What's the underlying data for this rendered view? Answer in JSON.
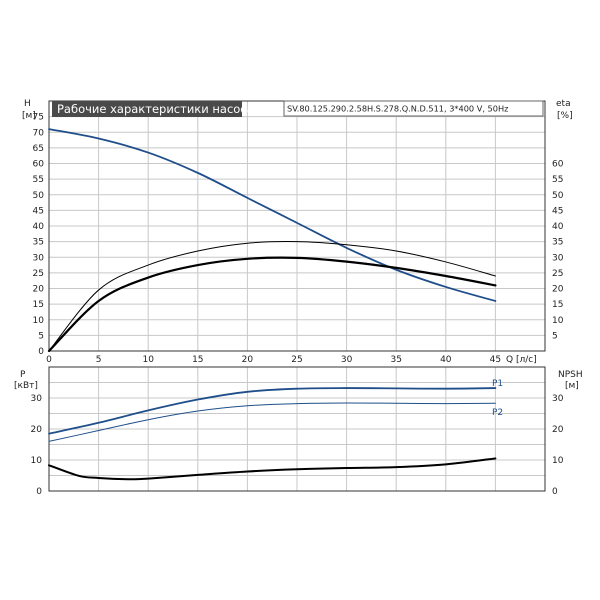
{
  "header": {
    "title": "Рабочие характеристики насоса",
    "subtitle": "SV.80.125.290.2.58H.S.278.Q.N.D.511, 3*400 V, 50Hz"
  },
  "colors": {
    "blue": "#1f4e8a",
    "black": "#000000",
    "grid": "#c8c8c8"
  },
  "chart_data": [
    {
      "type": "line",
      "name": "upper",
      "xaxis": {
        "label": "Q [л/с]",
        "range": [
          0,
          50
        ],
        "ticks": [
          0,
          5,
          10,
          15,
          20,
          25,
          30,
          35,
          40,
          45
        ]
      },
      "yaxis_left": {
        "label_line1": "H",
        "label_line2": "[м]",
        "range": [
          0,
          80
        ],
        "ticks": [
          0,
          5,
          10,
          15,
          20,
          25,
          30,
          35,
          40,
          45,
          50,
          55,
          60,
          65,
          70,
          75
        ]
      },
      "yaxis_right": {
        "label_line1": "eta",
        "label_line2": "[%]",
        "range": [
          0,
          80
        ],
        "ticks": [
          5,
          10,
          15,
          20,
          25,
          30,
          35,
          40,
          45,
          50,
          55,
          60
        ]
      },
      "grid": true,
      "series": [
        {
          "name": "H",
          "color": "#1f4e8a",
          "width": 1.8,
          "x": [
            0,
            5,
            10,
            15,
            20,
            25,
            30,
            35,
            40,
            45
          ],
          "y": [
            71,
            68,
            63.5,
            57,
            49,
            41,
            33,
            26,
            20.5,
            16
          ]
        },
        {
          "name": "eta",
          "color": "#000000",
          "width": 1.0,
          "x": [
            0,
            5,
            10,
            15,
            20,
            25,
            30,
            35,
            40,
            45
          ],
          "y": [
            0,
            19.5,
            27.5,
            32,
            34.5,
            35,
            34,
            32,
            28.5,
            24
          ]
        },
        {
          "name": "eta",
          "color": "#000000",
          "width": 2.2,
          "x": [
            0,
            5,
            10,
            15,
            20,
            25,
            30,
            35,
            40,
            45
          ],
          "y": [
            0,
            16,
            23.5,
            27.5,
            29.5,
            29.8,
            28.6,
            26.6,
            24,
            21
          ]
        }
      ]
    },
    {
      "type": "line",
      "name": "lower",
      "xaxis": {
        "range": [
          0,
          50
        ]
      },
      "yaxis_left": {
        "label_line1": "P",
        "label_line2": "[кВт]",
        "range": [
          0,
          40
        ],
        "ticks": [
          0,
          10,
          20,
          30
        ]
      },
      "yaxis_right": {
        "label_line1": "NPSH",
        "label_line2": "[м]",
        "range": [
          0,
          40
        ],
        "ticks": [
          0,
          10,
          20,
          30
        ]
      },
      "grid": true,
      "series": [
        {
          "name": "P1",
          "color": "#1f4e8a",
          "width": 1.8,
          "x": [
            0,
            5,
            10,
            15,
            20,
            25,
            30,
            35,
            40,
            45
          ],
          "y": [
            18.5,
            22,
            26,
            29.5,
            32,
            33,
            33.2,
            33.1,
            33,
            33.2
          ]
        },
        {
          "name": "P2",
          "color": "#1f4e8a",
          "width": 1.0,
          "x": [
            0,
            5,
            10,
            15,
            20,
            25,
            30,
            35,
            40,
            45
          ],
          "y": [
            16,
            19.5,
            23,
            25.8,
            27.5,
            28.2,
            28.4,
            28.3,
            28.2,
            28.3
          ]
        },
        {
          "name": "NPSH",
          "color": "#000000",
          "width": 2.0,
          "x": [
            0,
            3,
            5,
            8,
            10,
            15,
            20,
            25,
            30,
            35,
            40,
            45
          ],
          "y": [
            8.3,
            4.9,
            4.2,
            3.8,
            4.0,
            5.2,
            6.3,
            7.0,
            7.4,
            7.7,
            8.6,
            10.5
          ]
        }
      ]
    }
  ]
}
